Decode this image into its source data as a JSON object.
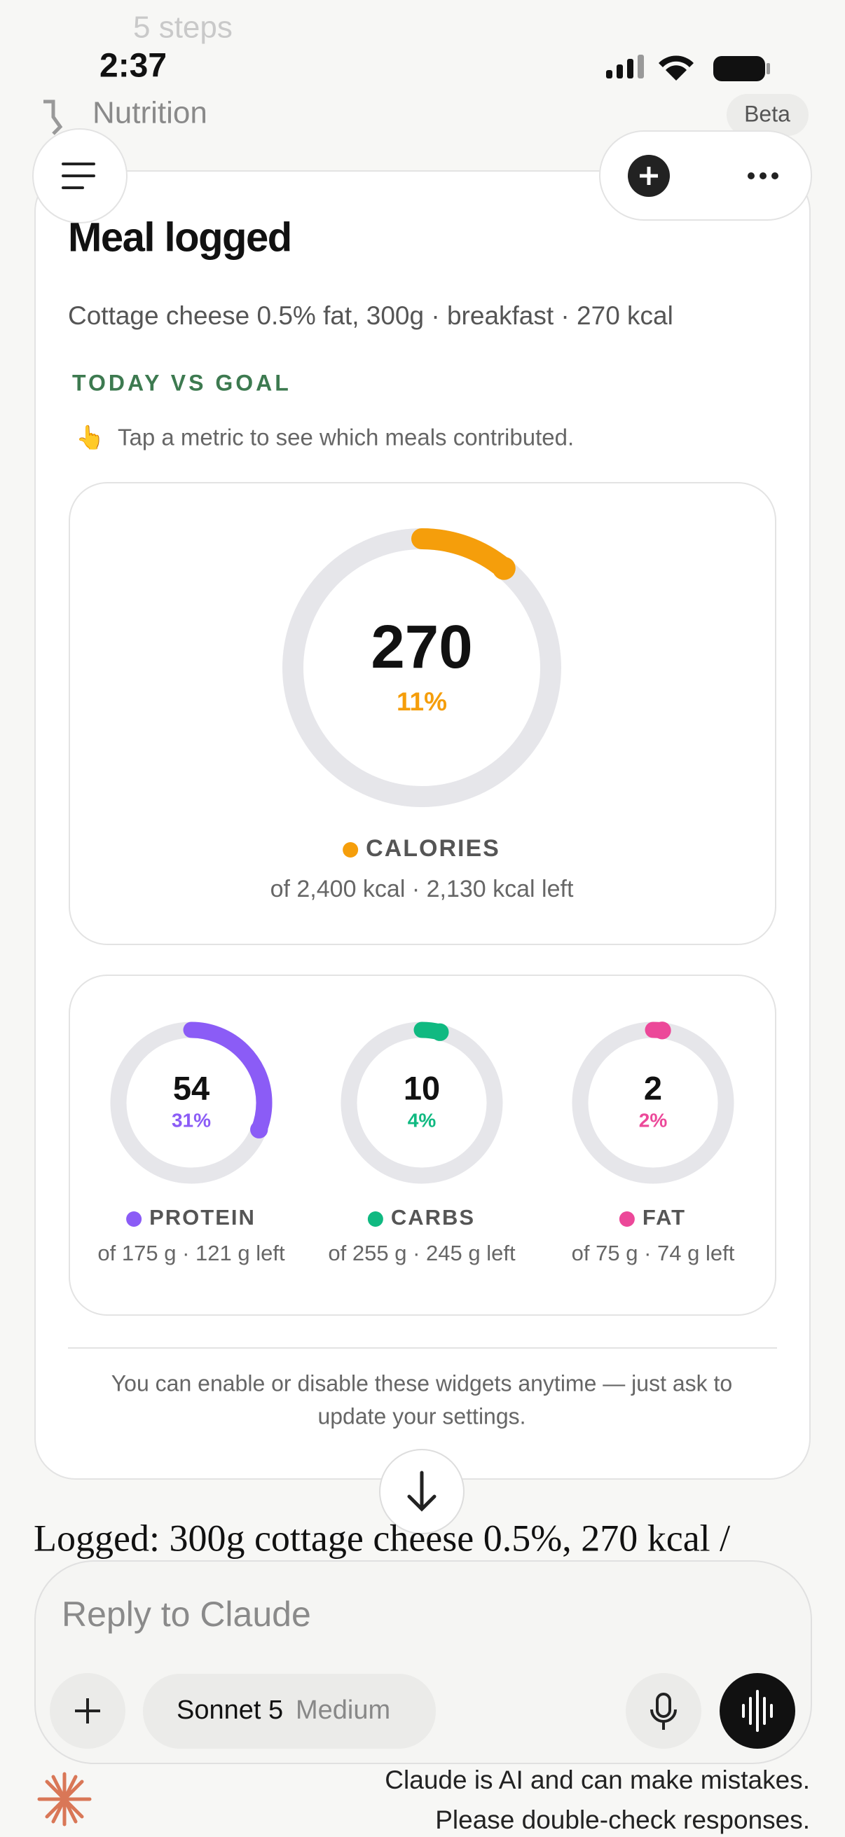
{
  "status_bar": {
    "time": "2:37"
  },
  "header": {
    "steps": "5 steps",
    "title": "Nutrition",
    "badge": "Beta"
  },
  "card": {
    "title": "Meal logged",
    "subtitle": "Cottage cheese 0.5% fat, 300g · breakfast · 270 kcal",
    "section": "TODAY VS GOAL",
    "hint_icon": "👆",
    "hint": "Tap a metric to see which meals contributed.",
    "calories": {
      "value": "270",
      "pct": {
        "value": 11,
        "label": "11%"
      },
      "label": "CALORIES",
      "detail": "of 2,400 kcal · 2,130 kcal left",
      "color": "#f59e0b"
    },
    "macros": [
      {
        "value": "54",
        "pct": {
          "value": 31,
          "label": "31%"
        },
        "label": "PROTEIN",
        "detail": "of 175 g · 121 g left",
        "color": "#8b5cf6"
      },
      {
        "value": "10",
        "pct": {
          "value": 4,
          "label": "4%"
        },
        "label": "CARBS",
        "detail": "of 255 g · 245 g left",
        "color": "#10b981"
      },
      {
        "value": "2",
        "pct": {
          "value": 2,
          "label": "2%"
        },
        "label": "FAT",
        "detail": "of 75 g · 74 g left",
        "color": "#ec4899"
      }
    ],
    "footer": [
      "You can enable or disable these widgets anytime — just ask to",
      "update your settings."
    ]
  },
  "message": "Logged: 300g cottage cheese 0.5%, 270 kcal /",
  "composer": {
    "placeholder": "Reply to Claude",
    "model": "Sonnet 5",
    "effort": "Medium"
  },
  "disclaimer": [
    "Claude is AI and can make mistakes.",
    "Please double-check responses."
  ]
}
